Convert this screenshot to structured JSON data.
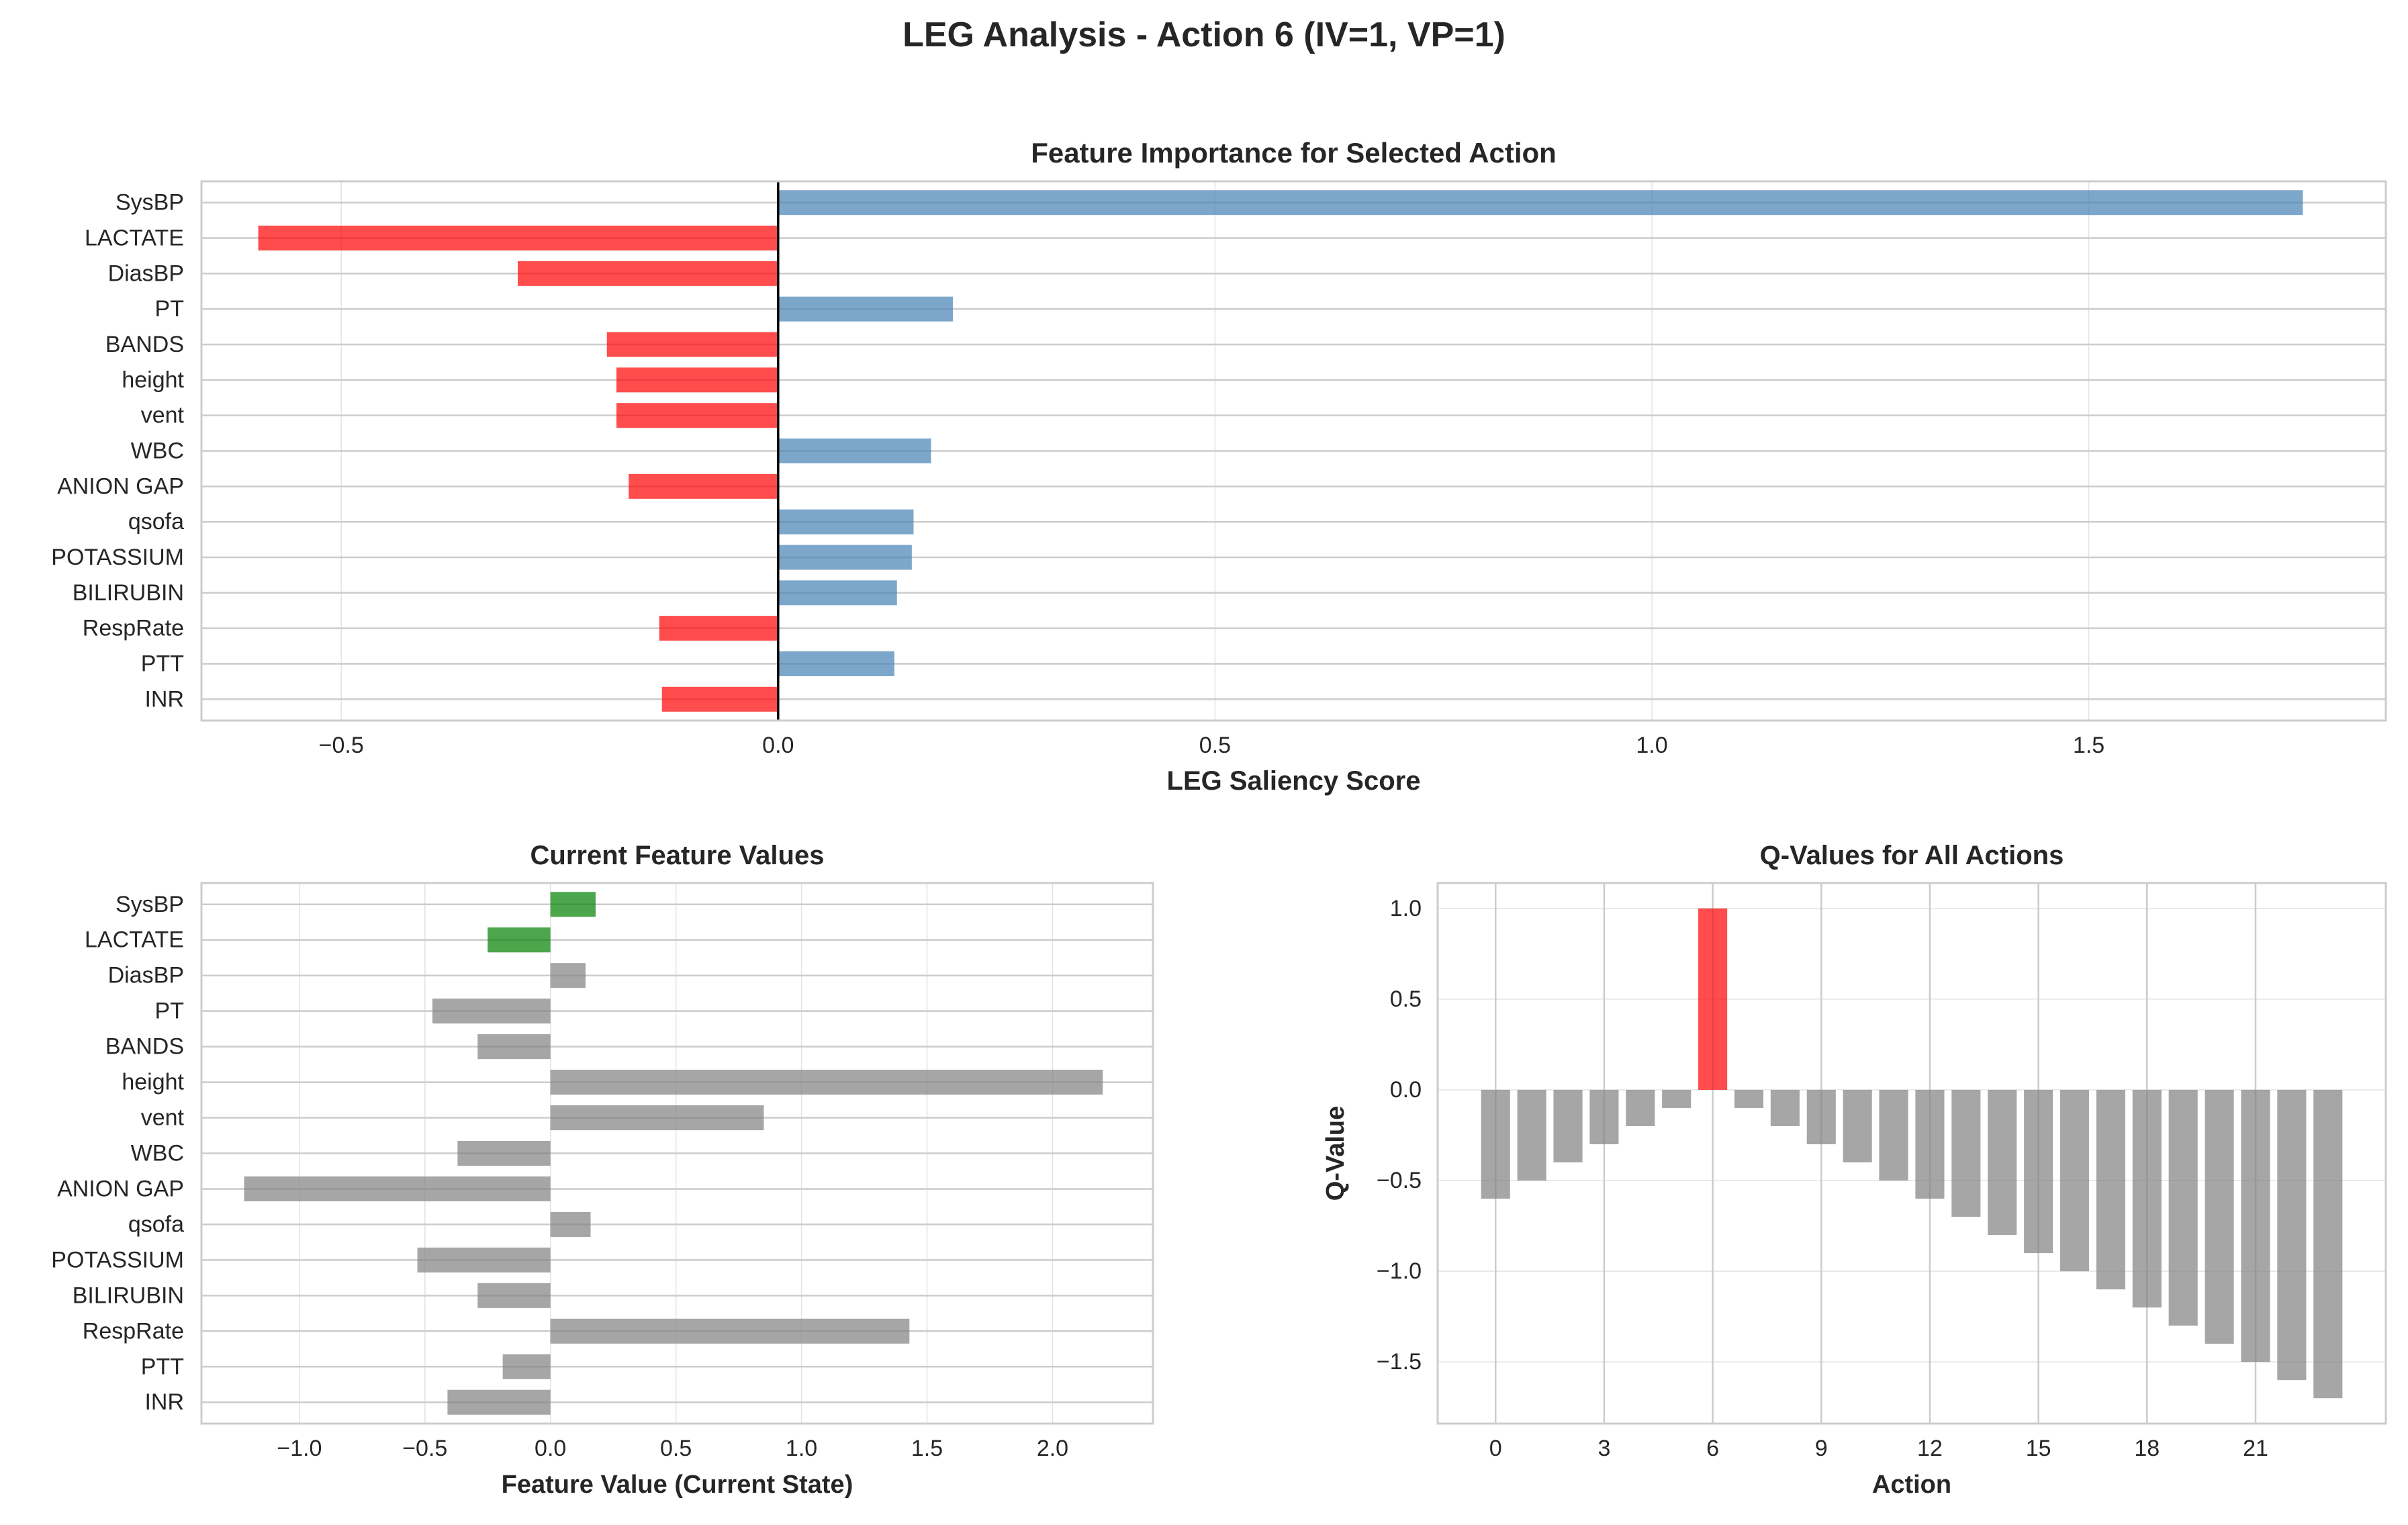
{
  "figure": {
    "title": "LEG Analysis - Action 6 (IV=1, VP=1)"
  },
  "colors": {
    "positive": "#4682b4",
    "negative": "#ff0000",
    "gray": "#808080",
    "green": "#008000",
    "grid": "#cccccc",
    "frame": "#cccccc",
    "text": "#262626"
  },
  "chart_data": [
    {
      "id": "saliency",
      "type": "bar",
      "orientation": "horizontal",
      "title": "Feature Importance for Selected Action",
      "xlabel": "LEG Saliency Score",
      "ylabel": "",
      "xlim": [
        -0.66,
        1.84
      ],
      "xticks": [
        -0.5,
        0.0,
        0.5,
        1.0,
        1.5
      ],
      "xtick_labels": [
        "−0.5",
        "0.0",
        "0.5",
        "1.0",
        "1.5"
      ],
      "reference_line": 0.0,
      "grid": true,
      "categories": [
        "SysBP",
        "LACTATE",
        "DiasBP",
        "PT",
        "BANDS",
        "height",
        "vent",
        "WBC",
        "ANION GAP",
        "qsofa",
        "POTASSIUM",
        "BILIRUBIN",
        "RespRate",
        "PTT",
        "INR"
      ],
      "values": [
        1.745,
        -0.595,
        -0.298,
        0.2,
        -0.196,
        -0.185,
        -0.185,
        0.175,
        -0.171,
        0.155,
        0.153,
        0.136,
        -0.136,
        0.133,
        -0.133
      ]
    },
    {
      "id": "feature_values",
      "type": "bar",
      "orientation": "horizontal",
      "title": "Current Feature Values",
      "xlabel": "Feature Value (Current State)",
      "ylabel": "",
      "xlim": [
        -1.39,
        2.4
      ],
      "xticks": [
        -1.0,
        -0.5,
        0.0,
        0.5,
        1.0,
        1.5,
        2.0
      ],
      "xtick_labels": [
        "−1.0",
        "−0.5",
        "0.0",
        "0.5",
        "1.0",
        "1.5",
        "2.0"
      ],
      "grid": true,
      "categories": [
        "SysBP",
        "LACTATE",
        "DiasBP",
        "PT",
        "BANDS",
        "height",
        "vent",
        "WBC",
        "ANION GAP",
        "qsofa",
        "POTASSIUM",
        "BILIRUBIN",
        "RespRate",
        "PTT",
        "INR"
      ],
      "values": [
        0.18,
        -0.25,
        0.14,
        -0.47,
        -0.29,
        2.2,
        0.85,
        -0.37,
        -1.22,
        0.16,
        -0.53,
        -0.29,
        1.43,
        -0.19,
        -0.41
      ],
      "highlighted": [
        "SysBP",
        "LACTATE"
      ]
    },
    {
      "id": "q_values",
      "type": "bar",
      "orientation": "vertical",
      "title": "Q-Values for All Actions",
      "xlabel": "Action",
      "ylabel": "Q-Value",
      "xlim": [
        -1.6,
        24.6
      ],
      "ylim": [
        -1.84,
        1.14
      ],
      "xticks": [
        0,
        3,
        6,
        9,
        12,
        15,
        18,
        21
      ],
      "xtick_labels": [
        "0",
        "3",
        "6",
        "9",
        "12",
        "15",
        "18",
        "21"
      ],
      "yticks": [
        1.0,
        0.5,
        0.0,
        -0.5,
        -1.0,
        -1.5
      ],
      "ytick_labels": [
        "1.0",
        "0.5",
        "0.0",
        "−0.5",
        "−1.0",
        "−1.5"
      ],
      "grid": true,
      "x": [
        0,
        1,
        2,
        3,
        4,
        5,
        6,
        7,
        8,
        9,
        10,
        11,
        12,
        13,
        14,
        15,
        16,
        17,
        18,
        19,
        20,
        21,
        22,
        23
      ],
      "values": [
        -0.6,
        -0.5,
        -0.4,
        -0.3,
        -0.2,
        -0.1,
        1.0,
        -0.1,
        -0.2,
        -0.3,
        -0.4,
        -0.5,
        -0.6,
        -0.7,
        -0.8,
        -0.9,
        -1.0,
        -1.1,
        -1.2,
        -1.3,
        -1.4,
        -1.5,
        -1.6,
        -1.7
      ],
      "highlighted_action": 6
    }
  ]
}
